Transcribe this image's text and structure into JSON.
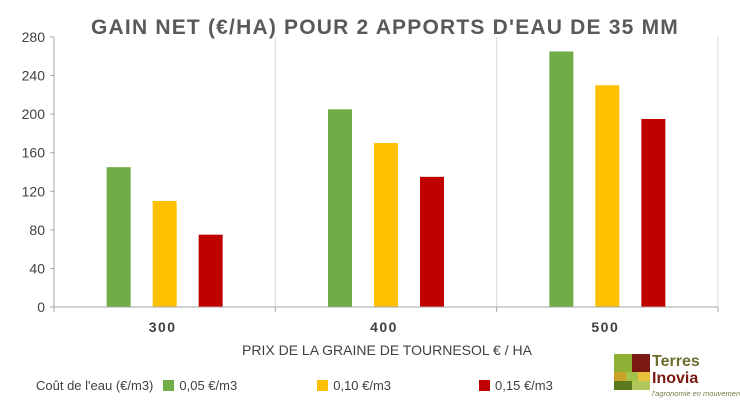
{
  "chart_data": {
    "type": "bar",
    "title": "GAIN NET (€/HA) POUR 2 APPORTS D'EAU DE 35 MM",
    "xlabel": "PRIX DE LA GRAINE DE TOURNESOL  € / HA",
    "ylabel": "",
    "categories": [
      "300",
      "400",
      "500"
    ],
    "ylim": [
      0,
      280
    ],
    "yticks": [
      0,
      40,
      80,
      120,
      160,
      200,
      240,
      280
    ],
    "grid": "vertical separators between categories",
    "legend_position": "bottom",
    "legend_title": "Coût de l'eau (€/m3)",
    "series": [
      {
        "name": "0,05 €/m3",
        "color": "#70ad47",
        "values": [
          145,
          205,
          265
        ]
      },
      {
        "name": "0,10 €/m3",
        "color": "#ffc000",
        "values": [
          110,
          170,
          230
        ]
      },
      {
        "name": "0,15 €/m3",
        "color": "#c00000",
        "values": [
          75,
          135,
          195
        ]
      }
    ]
  },
  "logo": {
    "line1": "Terres",
    "line2": "Inovia",
    "tagline": "l'agronomie en mouvement"
  }
}
